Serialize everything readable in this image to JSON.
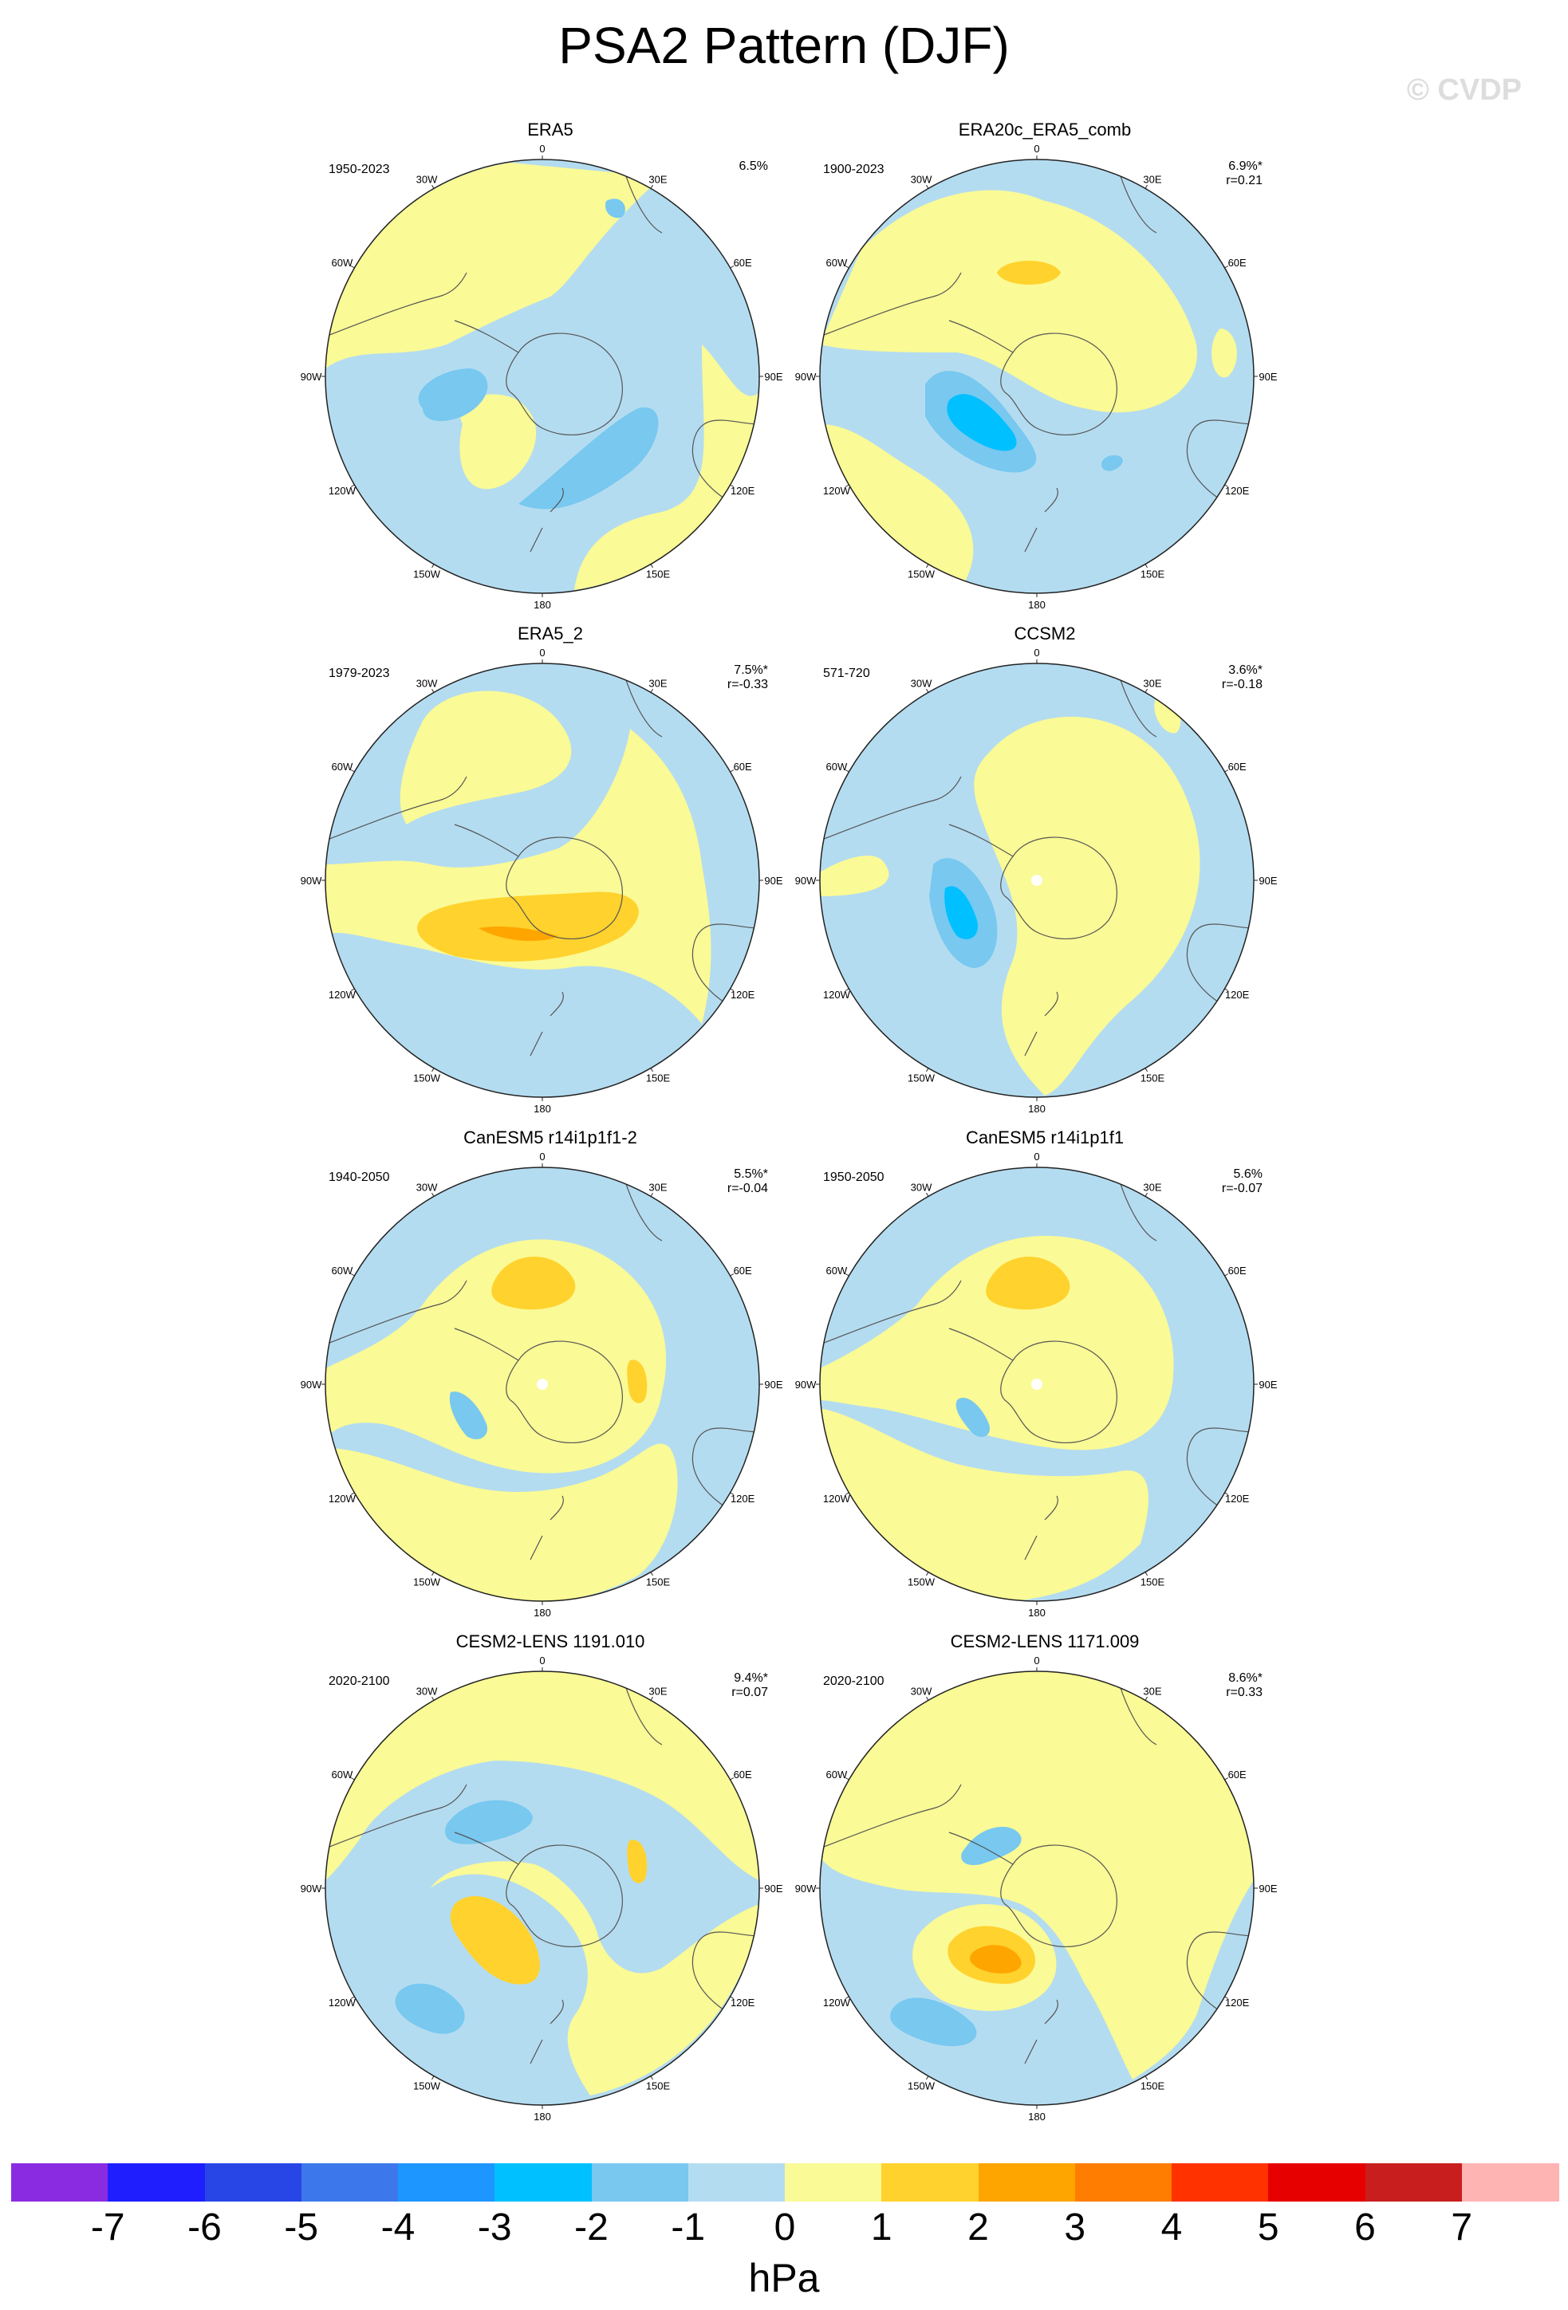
{
  "title": "PSA2 Pattern (DJF)",
  "watermark": "© CVDP",
  "longitude_labels": [
    "0",
    "30E",
    "60E",
    "90E",
    "120E",
    "150E",
    "180",
    "150W",
    "120W",
    "90W",
    "60W",
    "30W"
  ],
  "panels": [
    {
      "title": "ERA5",
      "years": "1950-2023",
      "pct": "6.5%",
      "r": ""
    },
    {
      "title": "ERA20c_ERA5_comb",
      "years": "1900-2023",
      "pct": "6.9%*",
      "r": "r=0.21"
    },
    {
      "title": "ERA5_2",
      "years": "1979-2023",
      "pct": "7.5%*",
      "r": "r=-0.33"
    },
    {
      "title": "CCSM2",
      "years": "571-720",
      "pct": "3.6%*",
      "r": "r=-0.18"
    },
    {
      "title": "CanESM5 r14i1p1f1-2",
      "years": "1940-2050",
      "pct": "5.5%*",
      "r": "r=-0.04"
    },
    {
      "title": "CanESM5 r14i1p1f1",
      "years": "1950-2050",
      "pct": "5.6%",
      "r": "r=-0.07"
    },
    {
      "title": "CESM2-LENS 1191.010",
      "years": "2020-2100",
      "pct": "9.4%*",
      "r": "r=0.07"
    },
    {
      "title": "CESM2-LENS 1171.009",
      "years": "2020-2100",
      "pct": "8.6%*",
      "r": "r=0.33"
    }
  ],
  "colorbar": {
    "units": "hPa",
    "labels": [
      "-7",
      "-6",
      "-5",
      "-4",
      "-3",
      "-2",
      "-1",
      "0",
      "1",
      "2",
      "3",
      "4",
      "5",
      "6",
      "7"
    ],
    "colors": [
      "#8a2be2",
      "#1e1eff",
      "#2846e6",
      "#3c78eb",
      "#1e96ff",
      "#00c0ff",
      "#78c8f0",
      "#b4dcf0",
      "#fafa96",
      "#ffd22d",
      "#ffa500",
      "#ff7d00",
      "#ff3200",
      "#e60000",
      "#c81e1e",
      "#ffb4b4"
    ]
  }
}
